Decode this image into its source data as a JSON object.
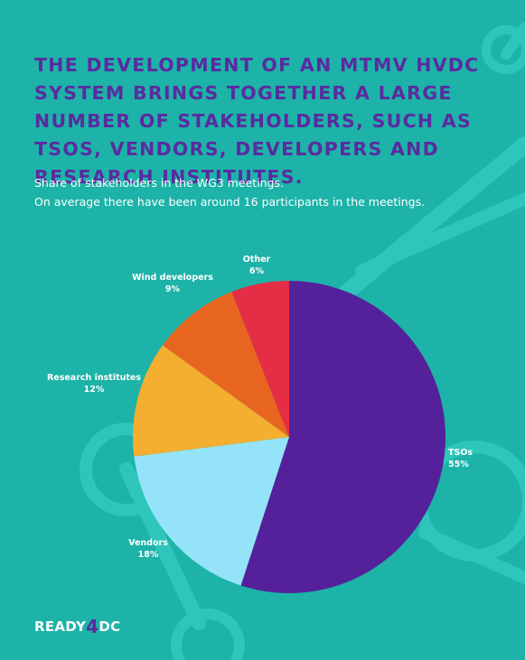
{
  "title": "THE DEVELOPMENT OF AN MTMV HVDC SYSTEM BRINGS TOGETHER A LARGE NUMBER OF STAKEHOLDERS, SUCH AS TSOS, VENDORS, DEVELOPERS AND RESEARCH INSTITUTES.",
  "subtitle": {
    "line1": "Share of stakeholders in the WG3 meetings.",
    "line2": "On average there have been around 16 participants in the meetings."
  },
  "logo": {
    "prefix": "READY",
    "digit": "4",
    "suffix": "DC"
  },
  "colors": {
    "background": "#1db3a8",
    "title": "#5a2ba0",
    "TSOs": "#54219a",
    "Vendors": "#94e3f9",
    "Research institutes": "#f4ae30",
    "Wind developers": "#e86520",
    "Other": "#e52d45"
  },
  "chart_data": {
    "type": "pie",
    "start_angle_deg": 0,
    "direction": "clockwise",
    "slices": [
      {
        "label": "TSOs",
        "value": 55,
        "value_label": "55%"
      },
      {
        "label": "Vendors",
        "value": 18,
        "value_label": "18%"
      },
      {
        "label": "Research institutes",
        "value": 12,
        "value_label": "12%"
      },
      {
        "label": "Wind developers",
        "value": 9,
        "value_label": "9%"
      },
      {
        "label": "Other",
        "value": 6,
        "value_label": "6%"
      }
    ]
  }
}
